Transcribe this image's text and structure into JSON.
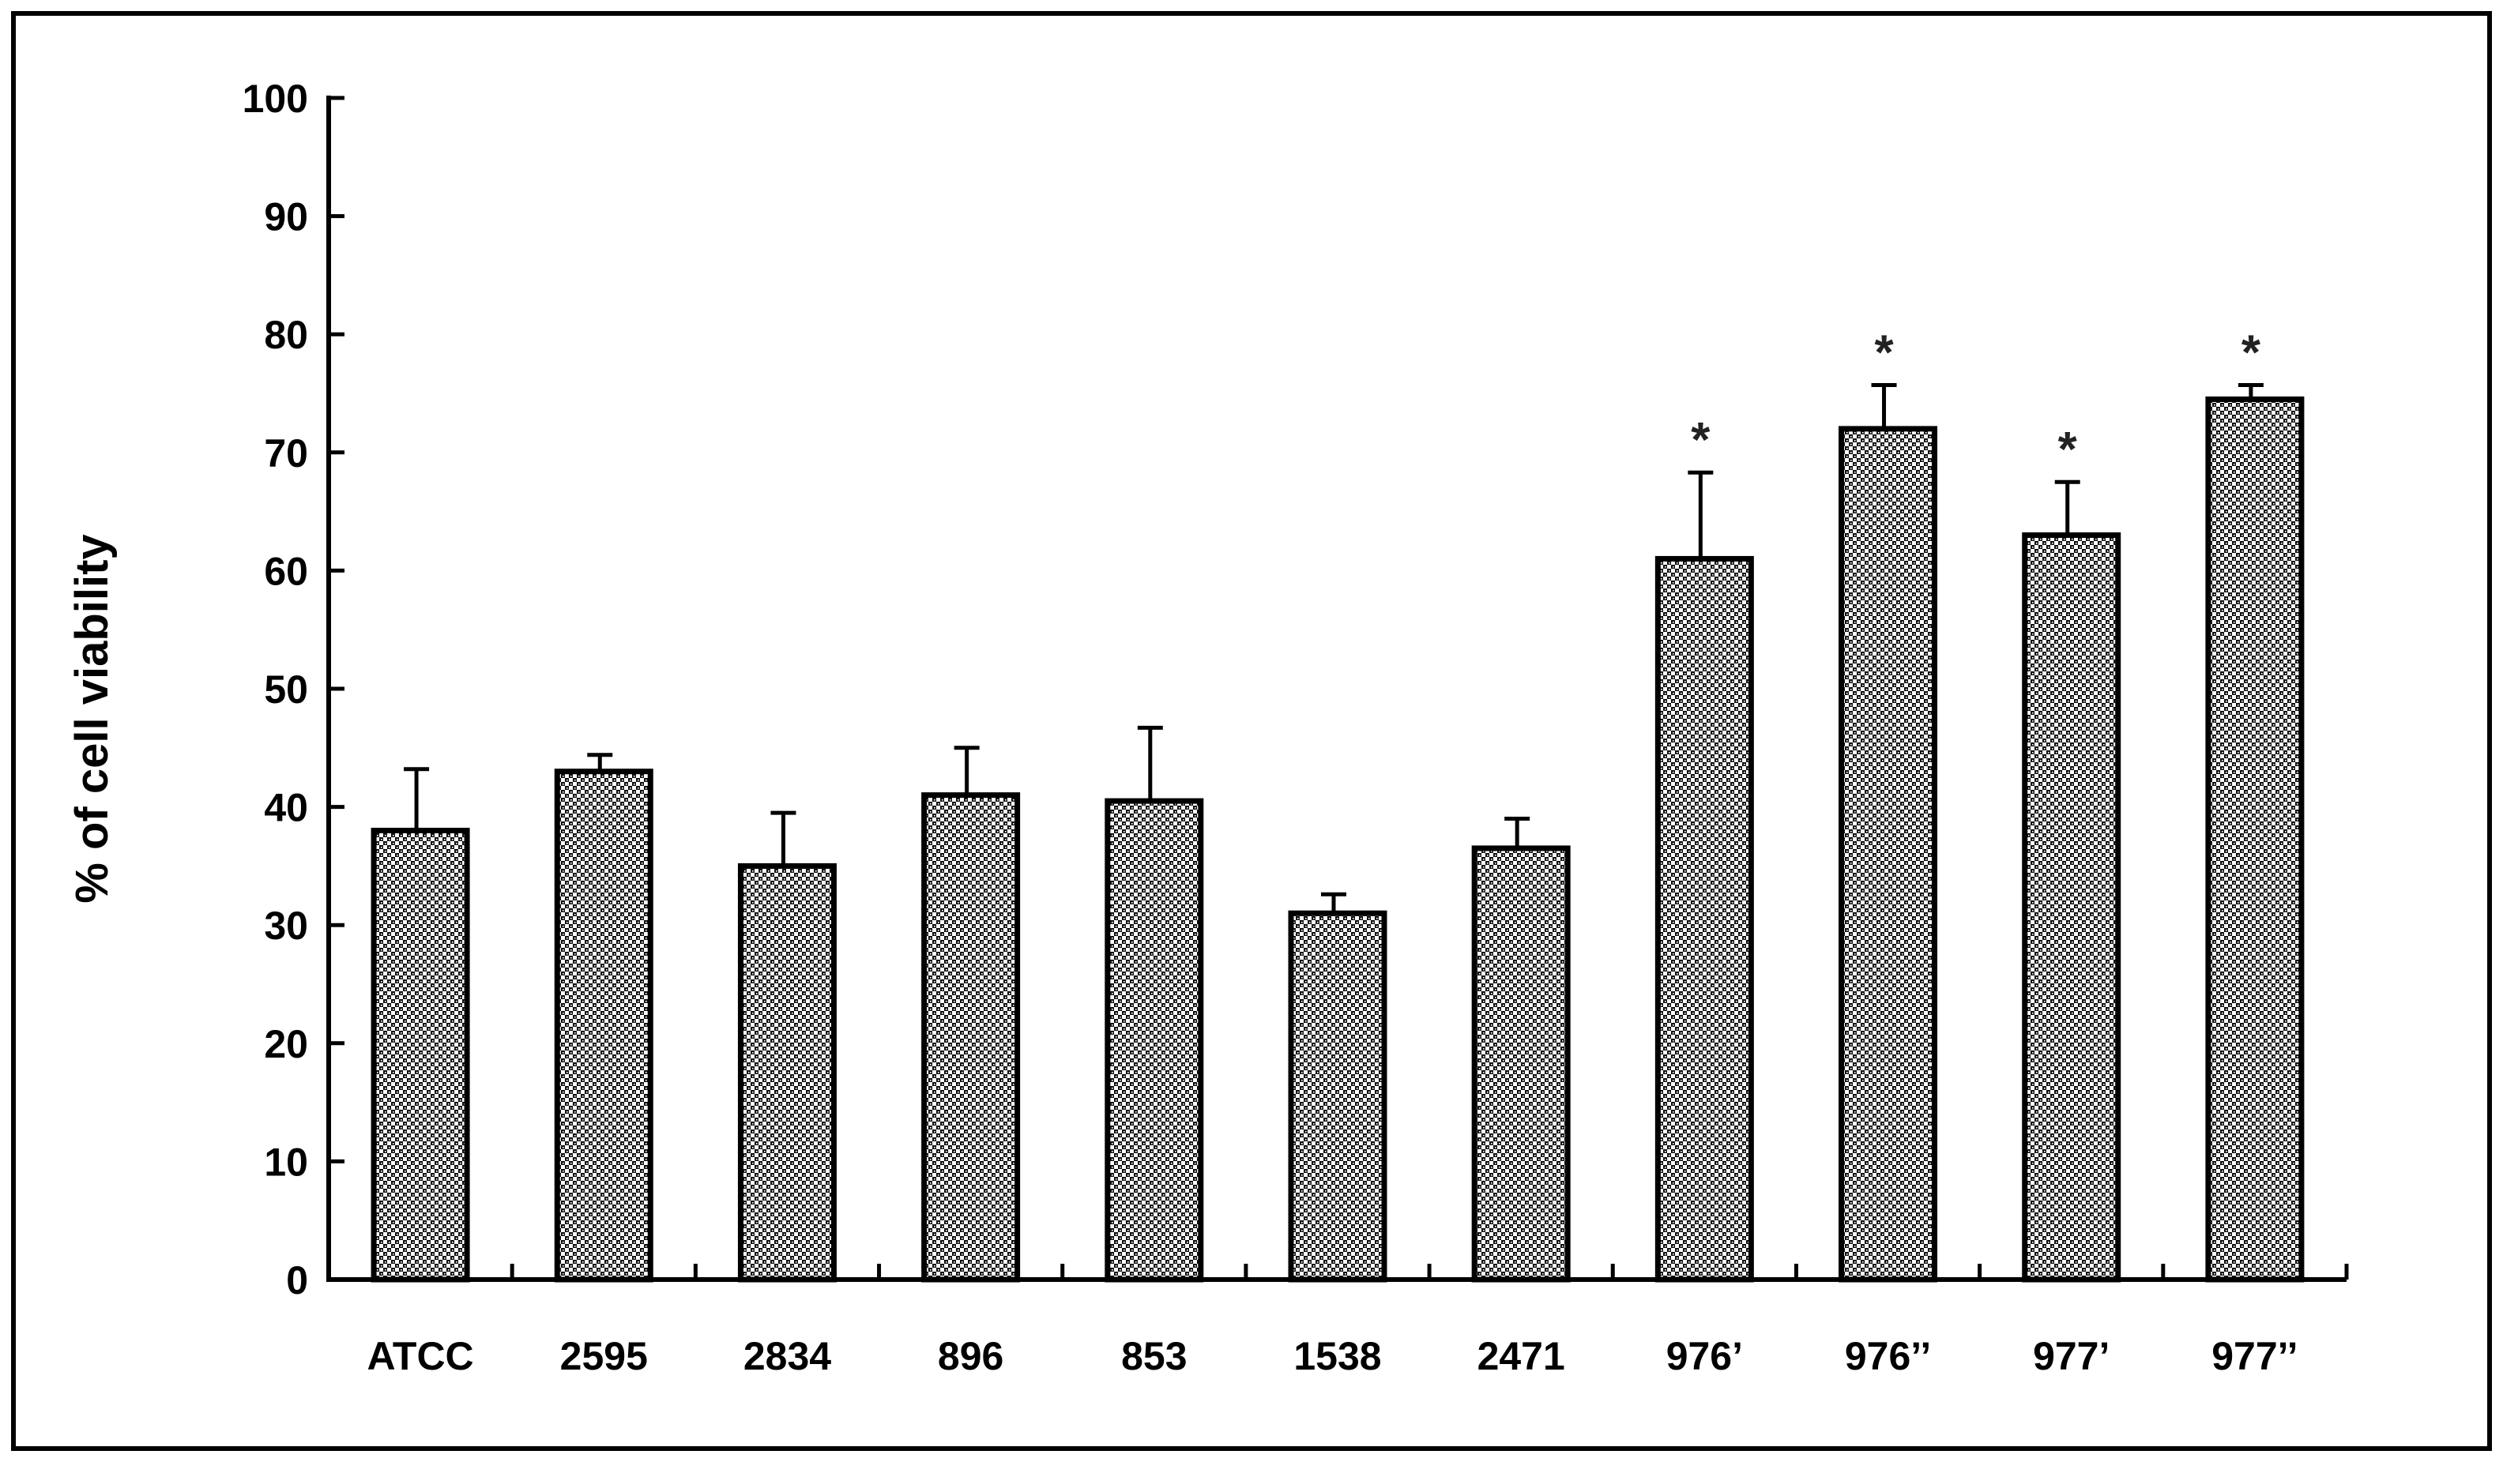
{
  "chart_data": {
    "type": "bar",
    "title": "",
    "xlabel": "",
    "ylabel": "% of cell viability",
    "ylim": [
      0,
      100
    ],
    "yticks": [
      0,
      10,
      20,
      30,
      40,
      50,
      60,
      70,
      80,
      90,
      100
    ],
    "categories": [
      "ATCC",
      "2595",
      "2834",
      "896",
      "853",
      "1538",
      "2471",
      "976’",
      "976’’",
      "977’",
      "977’’"
    ],
    "values": [
      38,
      43,
      35,
      41,
      40.5,
      31,
      36.5,
      61,
      72,
      63,
      74.5
    ],
    "error": [
      5.2,
      1.4,
      4.5,
      4.0,
      6.2,
      1.6,
      2.5,
      7.3,
      3.7,
      4.5,
      1.2
    ],
    "significance": [
      "",
      "",
      "",
      "",
      "",
      "",
      "",
      "*",
      "*",
      "*",
      "*"
    ],
    "grid": false,
    "legend": "none",
    "bar_pattern": "dense black-and-white crosshatch"
  }
}
